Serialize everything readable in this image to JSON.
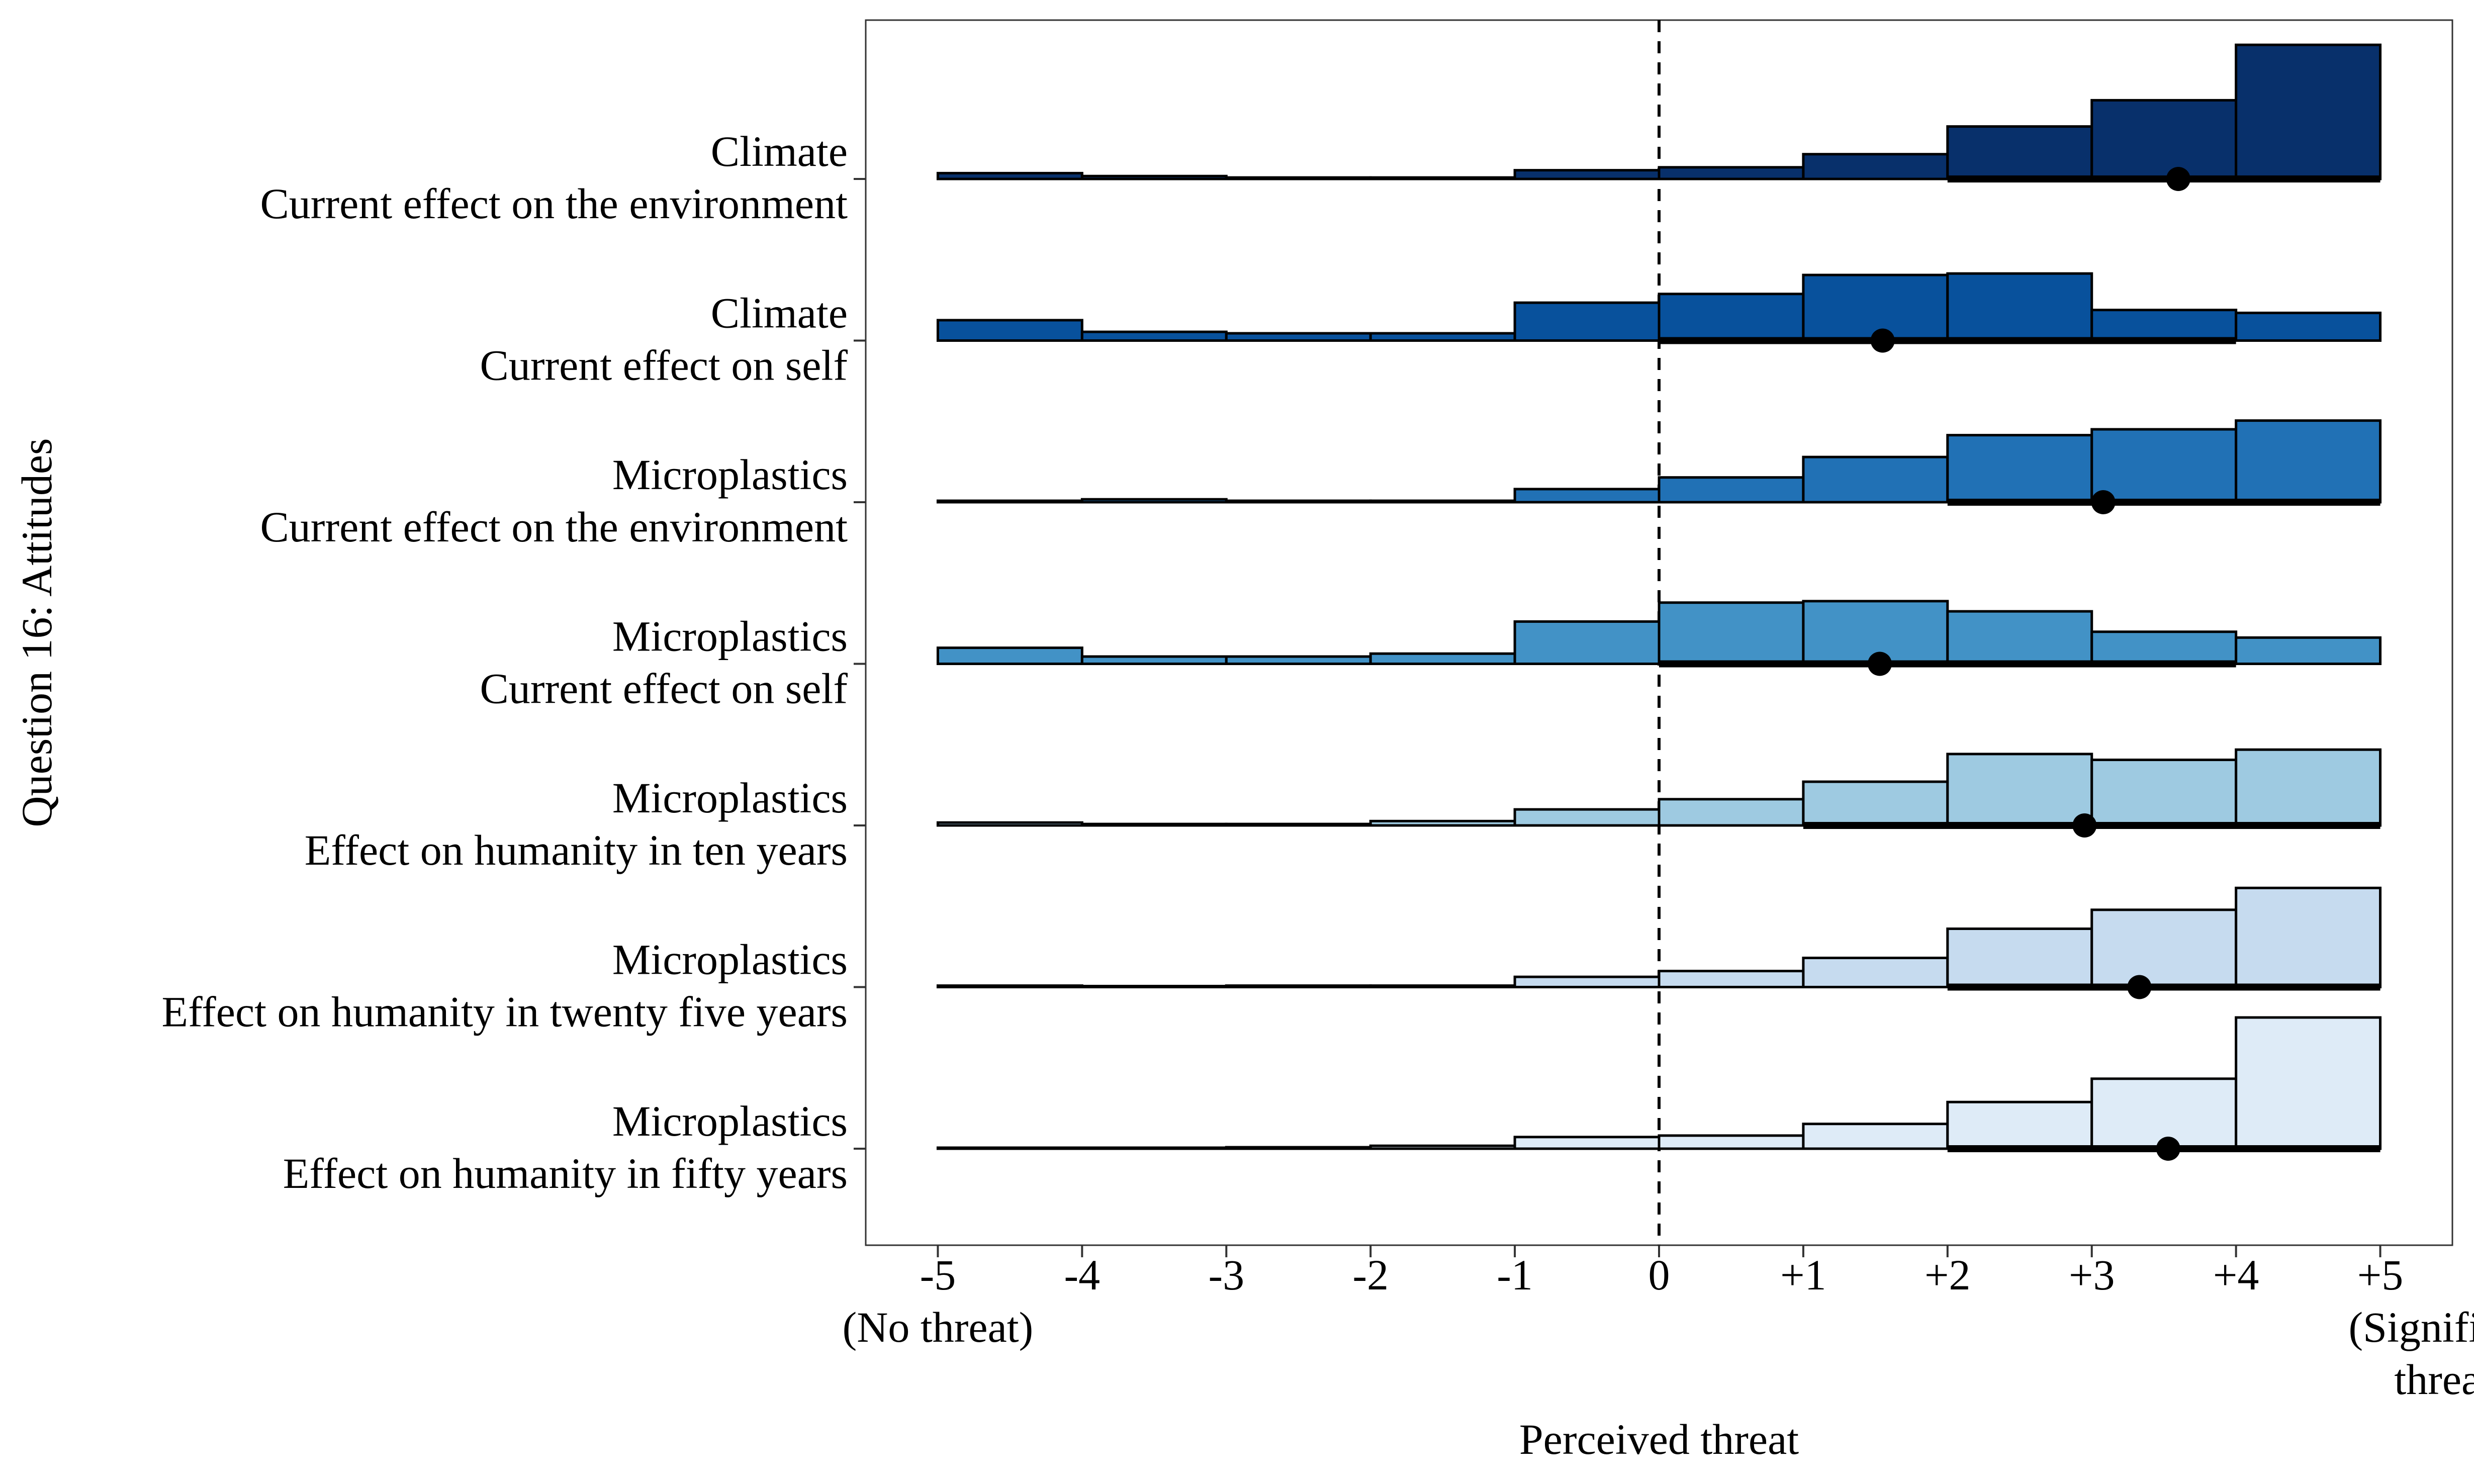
{
  "chart_data": {
    "type": "histogram-ridgeline",
    "xlabel": "Perceived threat",
    "ylabel": "Question 16: Attitudes",
    "xlim": [
      -5.5,
      5.5
    ],
    "reference_line_x": 0,
    "x_ticks": [
      {
        "value": -5,
        "label": "-5",
        "sublabel": [
          "(No threat)"
        ]
      },
      {
        "value": -4,
        "label": "-4",
        "sublabel": []
      },
      {
        "value": -3,
        "label": "-3",
        "sublabel": []
      },
      {
        "value": -2,
        "label": "-2",
        "sublabel": []
      },
      {
        "value": -1,
        "label": "-1",
        "sublabel": []
      },
      {
        "value": 0,
        "label": "0",
        "sublabel": []
      },
      {
        "value": 1,
        "label": "+1",
        "sublabel": []
      },
      {
        "value": 2,
        "label": "+2",
        "sublabel": []
      },
      {
        "value": 3,
        "label": "+3",
        "sublabel": []
      },
      {
        "value": 4,
        "label": "+4",
        "sublabel": []
      },
      {
        "value": 5,
        "label": "+5",
        "sublabel": [
          "(Significant",
          "threat)"
        ]
      }
    ],
    "bin_edges": [
      -5,
      -4,
      -3,
      -2,
      -1,
      0,
      1,
      2,
      3,
      4,
      5
    ],
    "series": [
      {
        "name": [
          "Climate",
          "Current effect on the environment"
        ],
        "color": "#08306b",
        "heights": [
          0.04,
          0.02,
          0.01,
          0.01,
          0.06,
          0.08,
          0.17,
          0.36,
          0.54,
          0.92
        ],
        "median": 3.6,
        "interval": [
          2,
          5
        ]
      },
      {
        "name": [
          "Climate",
          "Current effect on self"
        ],
        "color": "#08519c",
        "heights": [
          0.14,
          0.06,
          0.05,
          0.05,
          0.26,
          0.32,
          0.45,
          0.46,
          0.21,
          0.19
        ],
        "median": 1.55,
        "interval": [
          0,
          4
        ]
      },
      {
        "name": [
          "Microplastics",
          "Current effect on the environment"
        ],
        "color": "#2171b5",
        "heights": [
          0.01,
          0.02,
          0.01,
          0.01,
          0.09,
          0.17,
          0.31,
          0.46,
          0.5,
          0.56
        ],
        "median": 3.08,
        "interval": [
          2,
          5
        ]
      },
      {
        "name": [
          "Microplastics",
          "Current effect on self"
        ],
        "color": "#4292c6",
        "heights": [
          0.11,
          0.05,
          0.05,
          0.07,
          0.29,
          0.42,
          0.43,
          0.36,
          0.22,
          0.18
        ],
        "median": 1.53,
        "interval": [
          0,
          4
        ]
      },
      {
        "name": [
          "Microplastics",
          "Effect on humanity in ten years"
        ],
        "color": "#9ecae1",
        "heights": [
          0.02,
          0.01,
          0.01,
          0.03,
          0.11,
          0.18,
          0.3,
          0.49,
          0.45,
          0.52
        ],
        "median": 2.95,
        "interval": [
          1,
          5
        ]
      },
      {
        "name": [
          "Microplastics",
          "Effect on humanity in twenty five years"
        ],
        "color": "#c6dbef",
        "heights": [
          0.01,
          0.0,
          0.01,
          0.01,
          0.07,
          0.11,
          0.2,
          0.4,
          0.53,
          0.68
        ],
        "median": 3.33,
        "interval": [
          2,
          5
        ]
      },
      {
        "name": [
          "Microplastics",
          "Effect on humanity in fifty years"
        ],
        "color": "#deebf7",
        "heights": [
          0.0,
          0.0,
          0.01,
          0.02,
          0.08,
          0.09,
          0.17,
          0.32,
          0.48,
          0.9
        ],
        "median": 3.53,
        "interval": [
          2,
          5
        ]
      }
    ]
  }
}
